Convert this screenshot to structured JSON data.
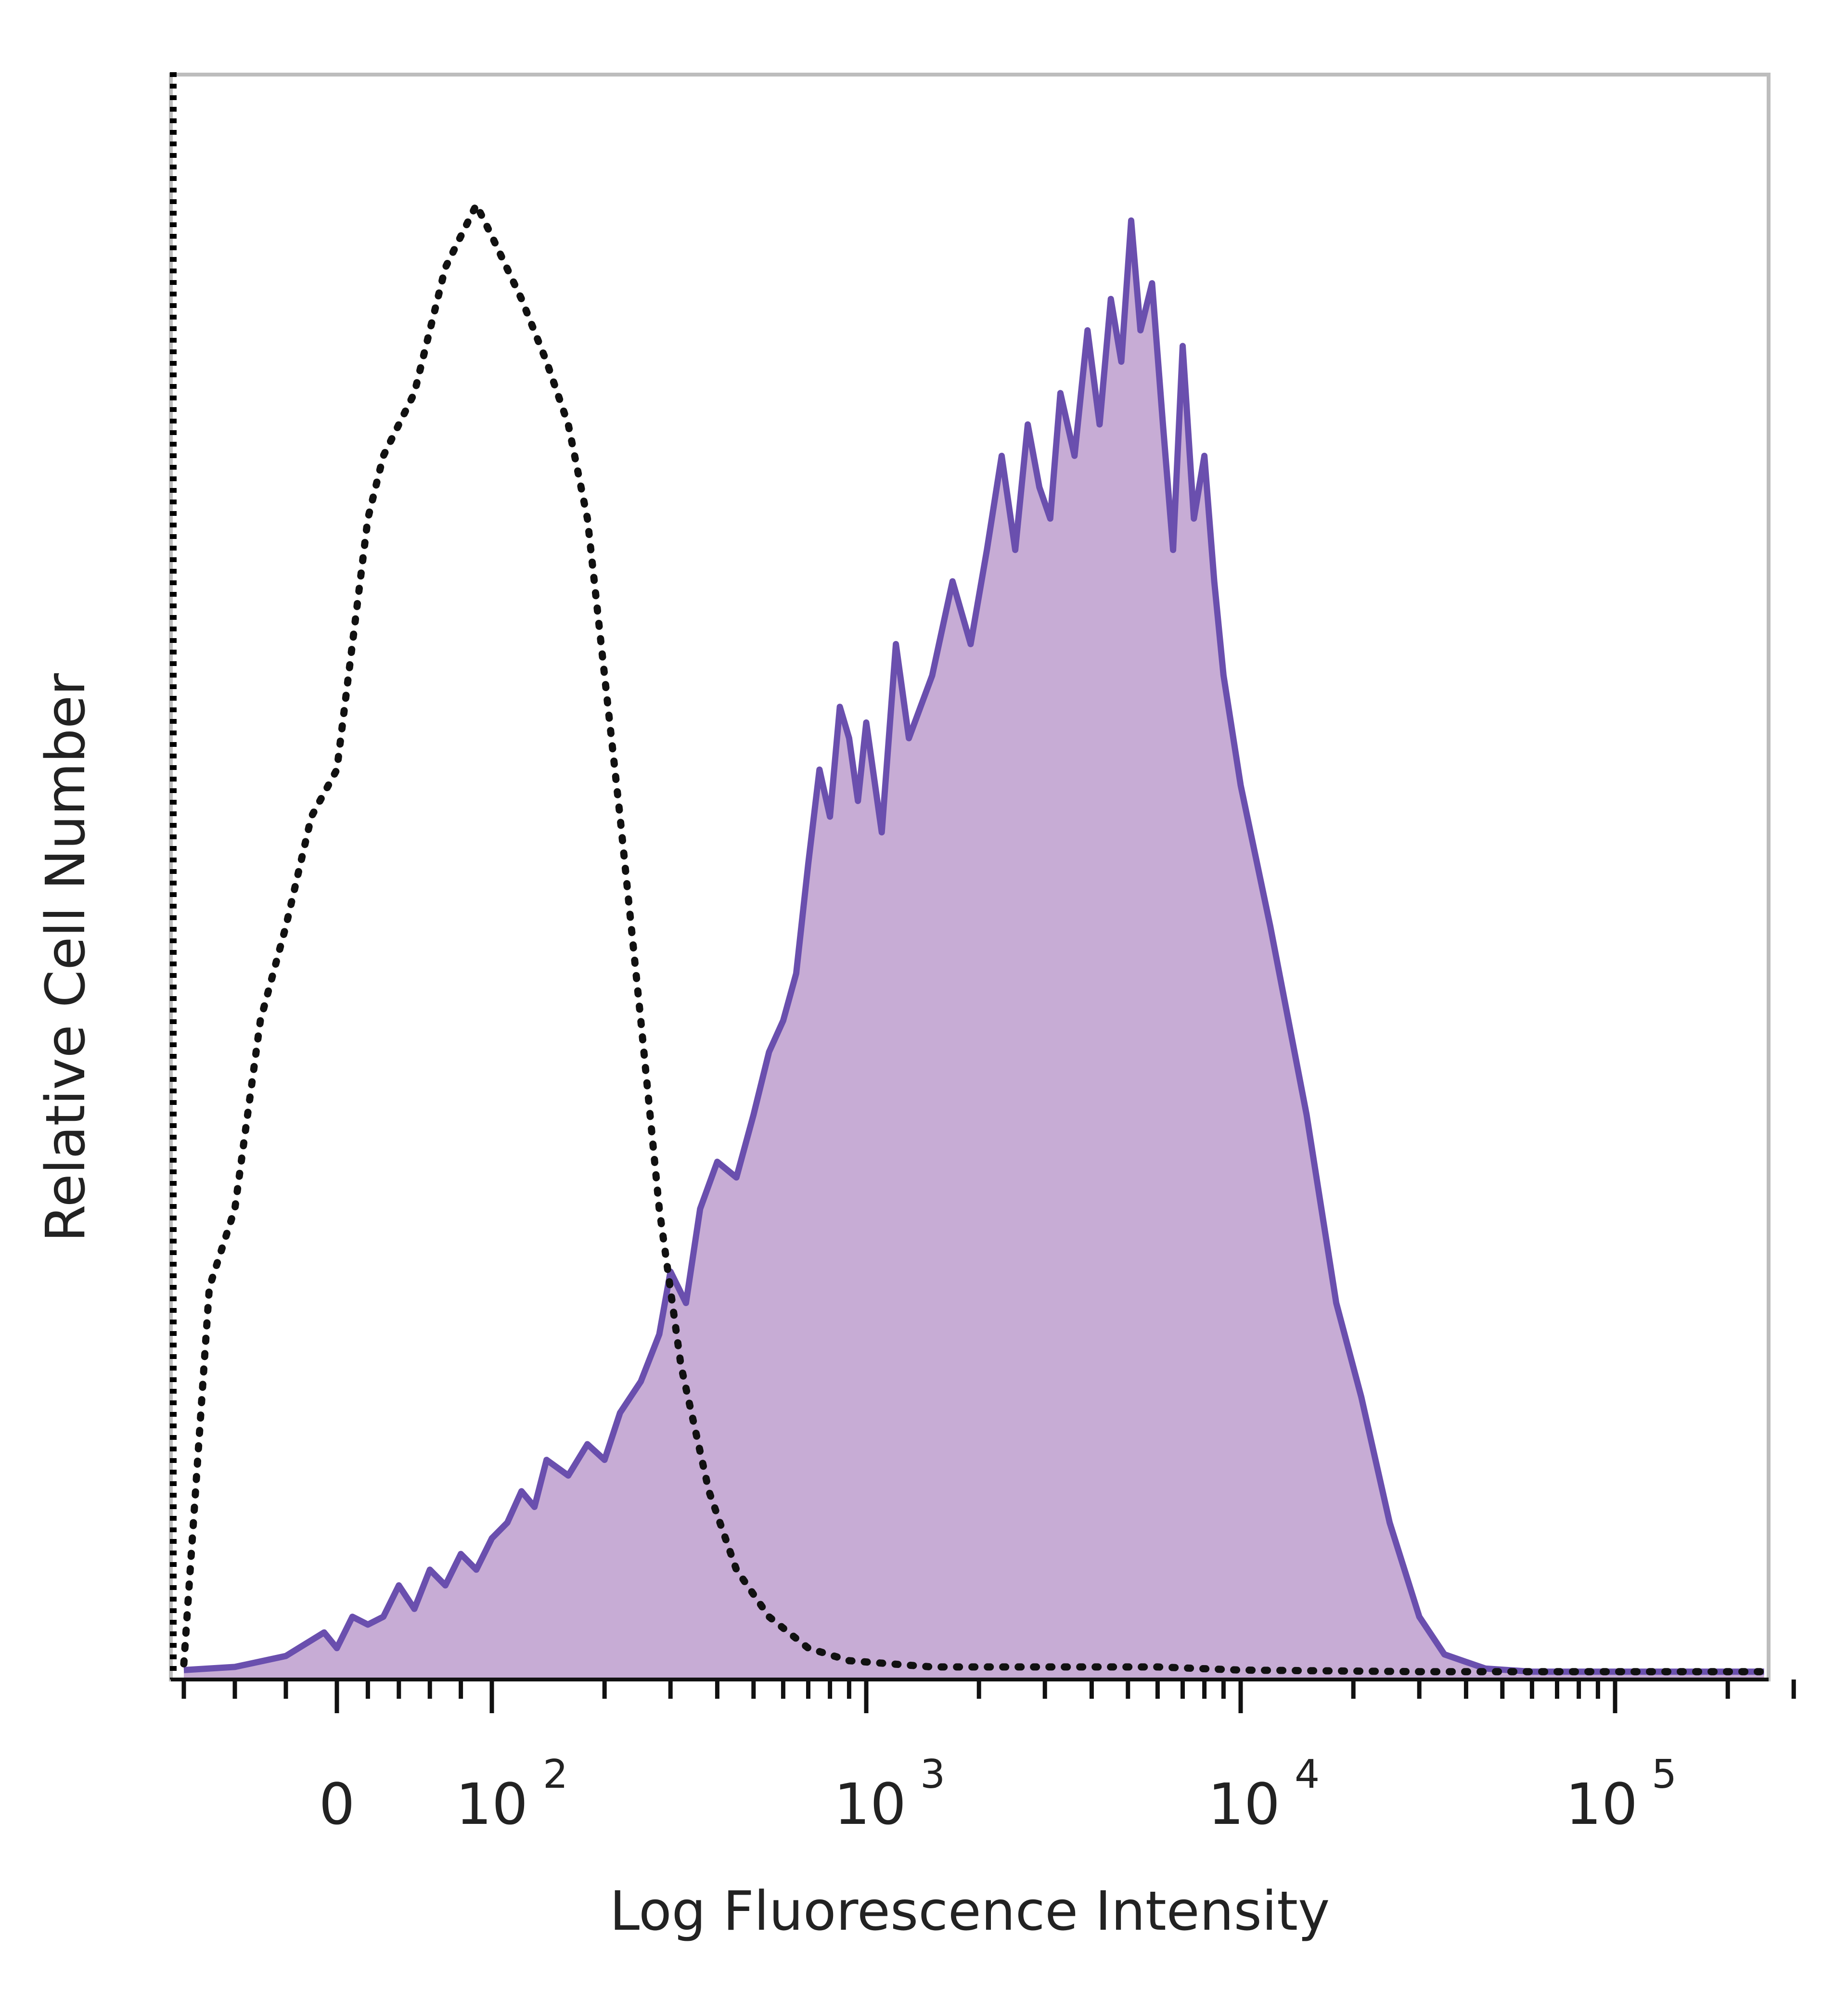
{
  "chart_data": {
    "type": "area",
    "title": "",
    "xlabel": "Log Fluorescence Intensity",
    "ylabel": "Relative Cell Number",
    "x_scale": "biexponential (logicle)",
    "xlim": [
      -60,
      250000
    ],
    "ylim": [
      0,
      1
    ],
    "grid": false,
    "legend": "none",
    "x_ticks": [
      {
        "label": "0",
        "base": "0",
        "exp": "",
        "value": 0
      },
      {
        "label": "10^2",
        "base": "10",
        "exp": "2",
        "value": 100
      },
      {
        "label": "10^3",
        "base": "10",
        "exp": "3",
        "value": 1000
      },
      {
        "label": "10^4",
        "base": "10",
        "exp": "4",
        "value": 10000
      },
      {
        "label": "10^5",
        "base": "10",
        "exp": "5",
        "value": 100000
      }
    ],
    "series": [
      {
        "style": "dotted",
        "color": "#111111",
        "fill": "none",
        "points": [
          [
            -60,
            0.01
          ],
          [
            -50,
            0.25
          ],
          [
            -40,
            0.3
          ],
          [
            -30,
            0.42
          ],
          [
            -20,
            0.48
          ],
          [
            -10,
            0.55
          ],
          [
            0,
            0.58
          ],
          [
            10,
            0.66
          ],
          [
            20,
            0.74
          ],
          [
            30,
            0.78
          ],
          [
            40,
            0.8
          ],
          [
            50,
            0.82
          ],
          [
            60,
            0.86
          ],
          [
            70,
            0.9
          ],
          [
            80,
            0.92
          ],
          [
            90,
            0.94
          ],
          [
            100,
            0.92
          ],
          [
            120,
            0.88
          ],
          [
            140,
            0.84
          ],
          [
            160,
            0.8
          ],
          [
            180,
            0.74
          ],
          [
            200,
            0.64
          ],
          [
            220,
            0.55
          ],
          [
            250,
            0.42
          ],
          [
            280,
            0.3
          ],
          [
            320,
            0.2
          ],
          [
            380,
            0.12
          ],
          [
            450,
            0.07
          ],
          [
            550,
            0.04
          ],
          [
            700,
            0.02
          ],
          [
            900,
            0.012
          ],
          [
            1500,
            0.008
          ],
          [
            3000,
            0.008
          ],
          [
            6000,
            0.008
          ],
          [
            10000,
            0.006
          ],
          [
            30000,
            0.005
          ],
          [
            100000,
            0.005
          ],
          [
            250000,
            0.005
          ]
        ]
      },
      {
        "style": "solid",
        "color": "#6a4fae",
        "fill": "#c7acd5",
        "points": [
          [
            -60,
            0.006
          ],
          [
            -40,
            0.008
          ],
          [
            -20,
            0.015
          ],
          [
            -5,
            0.03
          ],
          [
            0,
            0.02
          ],
          [
            10,
            0.04
          ],
          [
            20,
            0.035
          ],
          [
            30,
            0.04
          ],
          [
            40,
            0.06
          ],
          [
            50,
            0.045
          ],
          [
            60,
            0.07
          ],
          [
            70,
            0.06
          ],
          [
            80,
            0.08
          ],
          [
            90,
            0.07
          ],
          [
            100,
            0.09
          ],
          [
            110,
            0.1
          ],
          [
            120,
            0.12
          ],
          [
            130,
            0.11
          ],
          [
            140,
            0.14
          ],
          [
            160,
            0.13
          ],
          [
            180,
            0.15
          ],
          [
            200,
            0.14
          ],
          [
            220,
            0.17
          ],
          [
            250,
            0.19
          ],
          [
            280,
            0.22
          ],
          [
            300,
            0.26
          ],
          [
            330,
            0.24
          ],
          [
            360,
            0.3
          ],
          [
            400,
            0.33
          ],
          [
            450,
            0.32
          ],
          [
            500,
            0.36
          ],
          [
            550,
            0.4
          ],
          [
            600,
            0.42
          ],
          [
            650,
            0.45
          ],
          [
            700,
            0.52
          ],
          [
            750,
            0.58
          ],
          [
            800,
            0.55
          ],
          [
            850,
            0.62
          ],
          [
            900,
            0.6
          ],
          [
            950,
            0.56
          ],
          [
            1000,
            0.61
          ],
          [
            1100,
            0.54
          ],
          [
            1200,
            0.66
          ],
          [
            1300,
            0.6
          ],
          [
            1500,
            0.64
          ],
          [
            1700,
            0.7
          ],
          [
            1900,
            0.66
          ],
          [
            2100,
            0.72
          ],
          [
            2300,
            0.78
          ],
          [
            2500,
            0.72
          ],
          [
            2700,
            0.8
          ],
          [
            2900,
            0.76
          ],
          [
            3100,
            0.74
          ],
          [
            3300,
            0.82
          ],
          [
            3600,
            0.78
          ],
          [
            3900,
            0.86
          ],
          [
            4200,
            0.8
          ],
          [
            4500,
            0.88
          ],
          [
            4800,
            0.84
          ],
          [
            5100,
            0.93
          ],
          [
            5400,
            0.86
          ],
          [
            5800,
            0.89
          ],
          [
            6200,
            0.8
          ],
          [
            6600,
            0.72
          ],
          [
            7000,
            0.85
          ],
          [
            7500,
            0.74
          ],
          [
            8000,
            0.78
          ],
          [
            8500,
            0.7
          ],
          [
            9000,
            0.64
          ],
          [
            10000,
            0.57
          ],
          [
            12000,
            0.48
          ],
          [
            15000,
            0.36
          ],
          [
            18000,
            0.24
          ],
          [
            21000,
            0.18
          ],
          [
            25000,
            0.1
          ],
          [
            30000,
            0.04
          ],
          [
            35000,
            0.016
          ],
          [
            45000,
            0.007
          ],
          [
            60000,
            0.005
          ],
          [
            100000,
            0.005
          ],
          [
            250000,
            0.005
          ]
        ]
      }
    ]
  }
}
